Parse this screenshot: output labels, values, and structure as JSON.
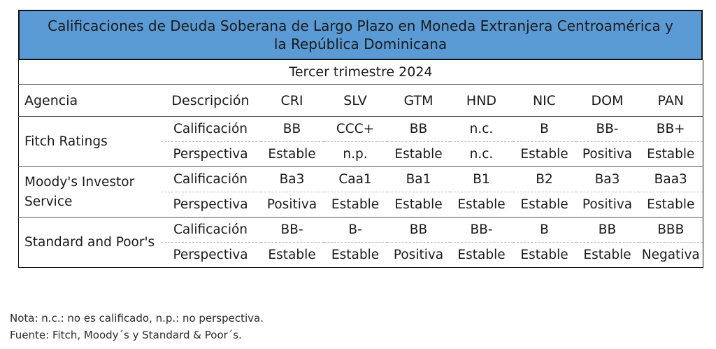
{
  "title": "Calificaciones de Deuda Soberana de Largo Plazo en Moneda Extranjera Centroamérica y la República Dominicana",
  "period": "Tercer trimestre 2024",
  "headers": {
    "agency": "Agencia",
    "description": "Descripción",
    "countries": [
      "CRI",
      "SLV",
      "GTM",
      "HND",
      "NIC",
      "DOM",
      "PAN"
    ]
  },
  "agencies": [
    {
      "name": "Fitch Ratings",
      "rows": [
        {
          "label": "Calificación",
          "values": [
            "BB",
            "CCC+",
            "BB",
            "n.c.",
            "B",
            "BB-",
            "BB+"
          ]
        },
        {
          "label": "Perspectiva",
          "values": [
            "Estable",
            "n.p.",
            "Estable",
            "n.c.",
            "Estable",
            "Positiva",
            "Estable"
          ]
        }
      ]
    },
    {
      "name": "Moody's Investor Service",
      "rows": [
        {
          "label": "Calificación",
          "values": [
            "Ba3",
            "Caa1",
            "Ba1",
            "B1",
            "B2",
            "Ba3",
            "Baa3"
          ]
        },
        {
          "label": "Perspectiva",
          "values": [
            "Positiva",
            "Estable",
            "Estable",
            "Estable",
            "Estable",
            "Positiva",
            "Estable"
          ]
        }
      ]
    },
    {
      "name": "Standard and Poor's",
      "rows": [
        {
          "label": "Calificación",
          "values": [
            "BB-",
            "B-",
            "BB",
            "BB-",
            "B",
            "BB",
            "BBB"
          ]
        },
        {
          "label": "Perspectiva",
          "values": [
            "Estable",
            "Estable",
            "Positiva",
            "Estable",
            "Estable",
            "Estable",
            "Negativa"
          ]
        }
      ]
    }
  ],
  "notes": {
    "nota": "Nota: n.c.: no es calificado, n.p.: no perspectiva.",
    "fuente": "Fuente: Fitch, Moody´s y Standard & Poor´s."
  },
  "colors": {
    "title_background": "#5b9bd5"
  }
}
